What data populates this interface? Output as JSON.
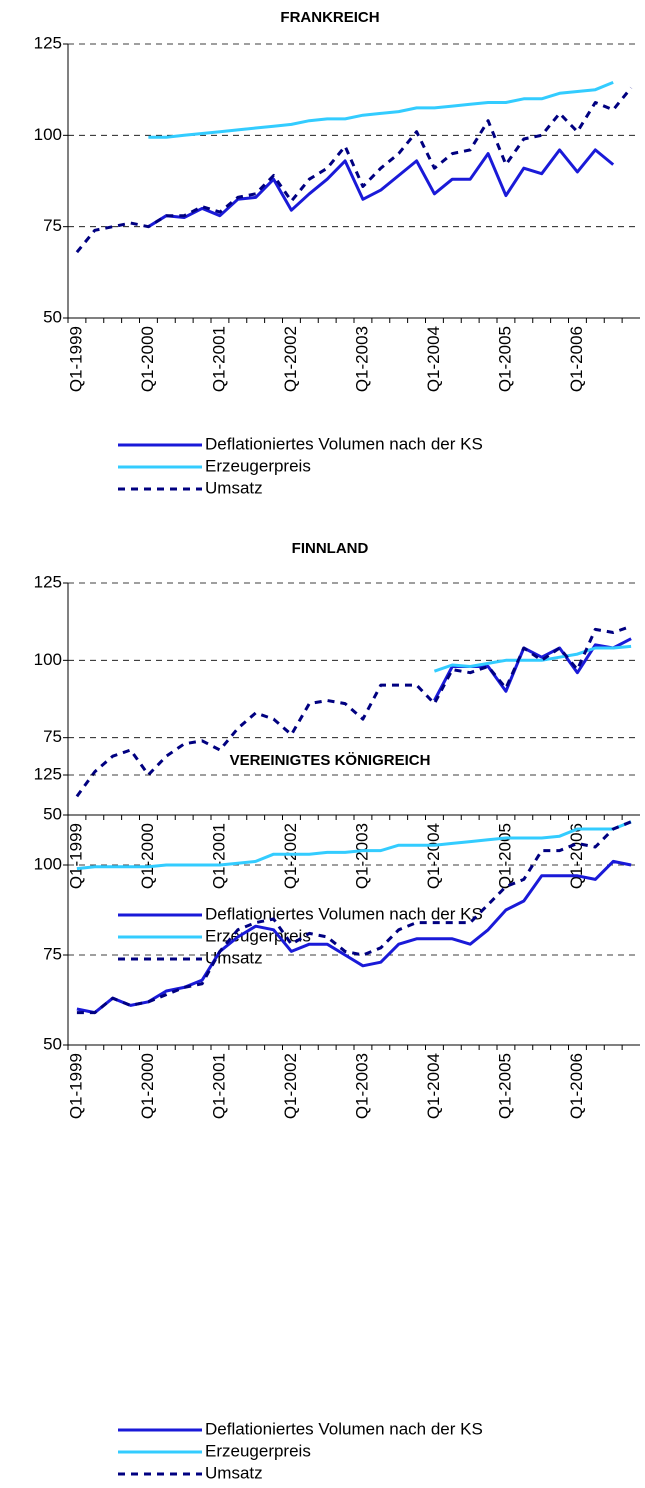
{
  "chart_data": [
    {
      "type": "line",
      "title": "FRANKREICH",
      "categories": [
        "Q1-1999",
        null,
        null,
        null,
        "Q1-2000",
        null,
        null,
        null,
        "Q1-2001",
        null,
        null,
        null,
        "Q1-2002",
        null,
        null,
        null,
        "Q1-2003",
        null,
        null,
        null,
        "Q1-2004",
        null,
        null,
        null,
        "Q1-2005",
        null,
        null,
        null,
        "Q1-2006",
        null,
        null,
        null
      ],
      "ylim": [
        50,
        125
      ],
      "yticks": [
        50,
        75,
        100,
        125
      ],
      "grid": true,
      "series": [
        {
          "name": "Deflationiertes Volumen nach der KS",
          "color": "#1a1ad8",
          "values": [
            null,
            null,
            null,
            null,
            75,
            78,
            77.5,
            80,
            78,
            82.5,
            83,
            88,
            79.5,
            84,
            88,
            93,
            82.5,
            85,
            89,
            93,
            84,
            88,
            88,
            95,
            83.5,
            91,
            89.5,
            96,
            90,
            96,
            92,
            null
          ]
        },
        {
          "name": "Erzeugerpreis",
          "color": "#33ccff",
          "values": [
            null,
            null,
            null,
            null,
            99.5,
            99.5,
            100,
            100.5,
            101,
            101.5,
            102,
            102.5,
            103,
            104,
            104.5,
            104.5,
            105.5,
            106,
            106.5,
            107.5,
            107.5,
            108,
            108.5,
            109,
            109,
            110,
            110,
            111.5,
            112,
            112.5,
            114.5,
            null
          ]
        },
        {
          "name": "Umsatz",
          "color": "#000080",
          "dashed": true,
          "values": [
            68,
            74,
            75,
            76,
            75,
            78,
            78,
            80.5,
            79,
            83,
            84,
            89,
            82,
            88,
            91,
            97,
            86,
            91,
            95,
            101,
            91,
            95,
            96,
            104,
            92,
            99,
            100,
            106,
            101,
            109,
            107,
            113
          ]
        }
      ]
    },
    {
      "type": "line",
      "title": "FINNLAND",
      "categories": [
        "Q1-1999",
        null,
        null,
        null,
        "Q1-2000",
        null,
        null,
        null,
        "Q1-2001",
        null,
        null,
        null,
        "Q1-2002",
        null,
        null,
        null,
        "Q1-2003",
        null,
        null,
        null,
        "Q1-2004",
        null,
        null,
        null,
        "Q1-2005",
        null,
        null,
        null,
        "Q1-2006",
        null,
        null,
        null
      ],
      "ylim": [
        50,
        125
      ],
      "yticks": [
        50,
        75,
        100,
        125
      ],
      "grid": true,
      "series": [
        {
          "name": "Deflationiertes Volumen nach der KS",
          "color": "#1a1ad8",
          "values": [
            null,
            null,
            null,
            null,
            null,
            null,
            null,
            null,
            null,
            null,
            null,
            null,
            null,
            null,
            null,
            null,
            null,
            null,
            null,
            null,
            87,
            98,
            98,
            98,
            90,
            104,
            101,
            104,
            96,
            105,
            104,
            107
          ]
        },
        {
          "name": "Erzeugerpreis",
          "color": "#33ccff",
          "values": [
            null,
            null,
            null,
            null,
            null,
            null,
            null,
            null,
            null,
            null,
            null,
            null,
            null,
            null,
            null,
            null,
            null,
            null,
            null,
            null,
            96.5,
            98.5,
            98,
            99,
            100,
            100,
            100,
            101,
            102,
            104,
            104,
            104.5
          ]
        },
        {
          "name": "Umsatz",
          "color": "#000080",
          "dashed": true,
          "values": [
            56,
            64,
            69,
            71,
            63,
            69,
            73,
            74,
            71,
            78,
            83,
            81,
            76,
            86,
            87,
            86,
            81,
            92,
            92,
            92,
            86,
            97,
            96,
            98,
            91,
            104,
            100,
            104,
            97,
            110,
            109,
            111
          ]
        }
      ]
    },
    {
      "type": "line",
      "title": "VEREINIGTES KÖNIGREICH",
      "categories": [
        "Q1-1999",
        null,
        null,
        null,
        "Q1-2000",
        null,
        null,
        null,
        "Q1-2001",
        null,
        null,
        null,
        "Q1-2002",
        null,
        null,
        null,
        "Q1-2003",
        null,
        null,
        null,
        "Q1-2004",
        null,
        null,
        null,
        "Q1-2005",
        null,
        null,
        null,
        "Q1-2006",
        null,
        null,
        null
      ],
      "ylim": [
        50,
        125
      ],
      "yticks": [
        50,
        75,
        100,
        125
      ],
      "grid": true,
      "series": [
        {
          "name": "Deflationiertes Volumen nach der KS",
          "color": "#1a1ad8",
          "values": [
            60,
            59,
            63,
            61,
            62,
            65,
            66,
            68,
            76,
            80,
            83,
            82,
            76,
            78,
            78,
            75,
            72,
            73,
            78,
            79.5,
            79.5,
            79.5,
            78,
            82,
            87.5,
            90,
            97,
            97,
            97,
            96,
            101,
            100
          ]
        },
        {
          "name": "Erzeugerpreis",
          "color": "#33ccff",
          "values": [
            99,
            99.5,
            99.5,
            99.5,
            99.5,
            100,
            100,
            100,
            100,
            100.5,
            101,
            103,
            103,
            103,
            103.5,
            103.5,
            104,
            104,
            105.5,
            105.5,
            105.5,
            106,
            106.5,
            107,
            107.5,
            107.5,
            107.5,
            108,
            110,
            110,
            110,
            112
          ]
        },
        {
          "name": "Umsatz",
          "color": "#000080",
          "dashed": true,
          "values": [
            59,
            59,
            63,
            61,
            62,
            64,
            66,
            67,
            76,
            82,
            84,
            85,
            78,
            81,
            80,
            76,
            75,
            77,
            82,
            84,
            84,
            84,
            84,
            89,
            94,
            96,
            104,
            104,
            106,
            105,
            110,
            112
          ]
        }
      ]
    }
  ]
}
